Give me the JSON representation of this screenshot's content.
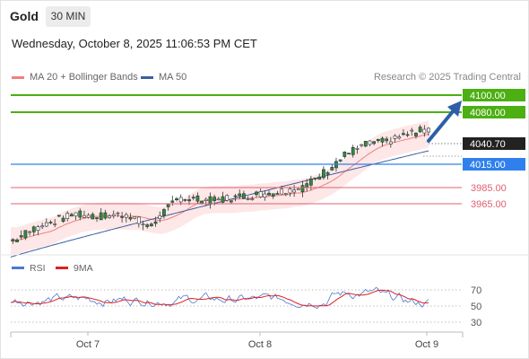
{
  "header": {
    "symbol": "Gold",
    "timeframe": "30 MIN"
  },
  "datetime": "Wednesday, October 8, 2025 11:06:53 PM CET",
  "legend": {
    "ma20": "MA 20 + Bollinger Bands",
    "ma50": "MA 50",
    "credit": "Research © 2025 Trading Central"
  },
  "levels": [
    {
      "label": "4100.00",
      "style": "target"
    },
    {
      "label": "4080.00",
      "style": "target"
    },
    {
      "label": "4040.70",
      "style": "current"
    },
    {
      "label": "4015.00",
      "style": "pivot"
    },
    {
      "label": "3985.00",
      "style": "support"
    },
    {
      "label": "3965.00",
      "style": "support"
    }
  ],
  "rsi": {
    "legend_rsi": "RSI",
    "legend_ma": "9MA",
    "ticks": [
      "70",
      "50",
      "30"
    ]
  },
  "xaxis": {
    "labels": [
      "Oct 7",
      "Oct 8",
      "Oct 9"
    ]
  },
  "colors": {
    "target": "#4caf12",
    "pivot": "#2f80ed",
    "support": "#e06070",
    "current_box": "#222222",
    "candle": "#2e8b3e",
    "ma20": "#f08080",
    "ma50": "#3a5f9f",
    "band": "#fde3e3",
    "rsi": "#4a78d4",
    "rsi_ma": "#e02020",
    "arrow": "#2c5fa8"
  }
}
